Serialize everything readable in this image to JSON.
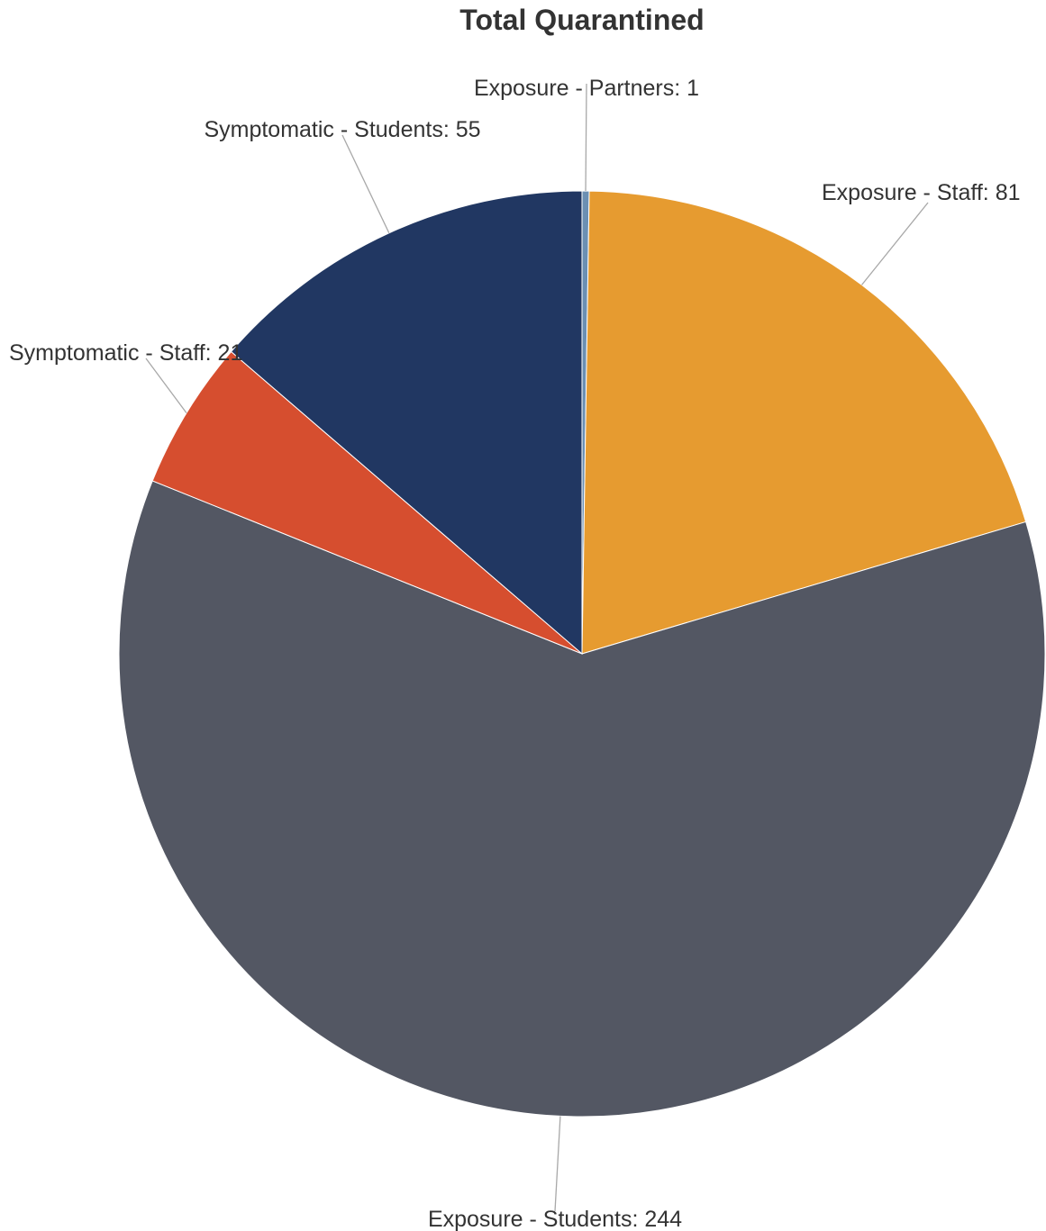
{
  "chart_data": {
    "type": "pie",
    "title": "Total Quarantined",
    "slices": [
      {
        "label": "Exposure - Partners",
        "value": 1,
        "display": "Exposure - Partners: 1",
        "color": "#6b8fb3"
      },
      {
        "label": "Exposure - Staff",
        "value": 81,
        "display": "Exposure - Staff: 81",
        "color": "#e69b30"
      },
      {
        "label": "Exposure - Students",
        "value": 244,
        "display": "Exposure - Students: 244",
        "color": "#535763"
      },
      {
        "label": "Symptomatic - Staff",
        "value": 21,
        "display": "Symptomatic - Staff: 21",
        "color": "#d64e2f"
      },
      {
        "label": "Symptomatic - Students",
        "value": 55,
        "display": "Symptomatic - Students: 55",
        "color": "#213762"
      }
    ],
    "start_angle": "12 o'clock",
    "direction": "clockwise",
    "legend": "none",
    "data_labels": "outside with connector lines"
  }
}
